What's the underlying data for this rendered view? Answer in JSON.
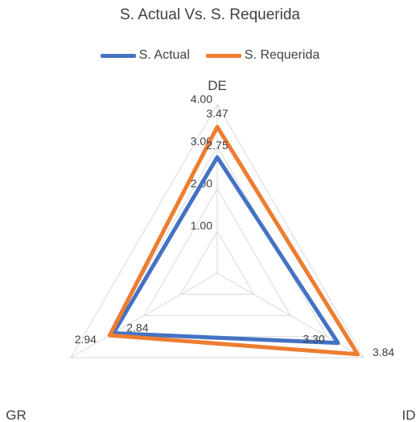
{
  "colors": {
    "actual": "#4472C4",
    "requerida": "#ED7D31",
    "grid": "#D9D9D9",
    "text": "#404040"
  },
  "chart_data": {
    "type": "radar",
    "title": "S. Actual Vs. S. Requerida",
    "legend_position": "top",
    "grid": true,
    "axes": [
      "DE",
      "ID",
      "GR"
    ],
    "rlim": [
      0,
      4
    ],
    "r_ticks": [
      "1.00",
      "2.00",
      "3.00",
      "4.00"
    ],
    "series": [
      {
        "name": "S. Actual",
        "values": [
          2.75,
          3.3,
          2.84
        ],
        "labels": [
          "2.75",
          "3.30",
          "2.84"
        ]
      },
      {
        "name": "S. Requerida",
        "values": [
          3.47,
          3.84,
          2.94
        ],
        "labels": [
          "3.47",
          "3.84",
          "2.94"
        ]
      }
    ]
  }
}
